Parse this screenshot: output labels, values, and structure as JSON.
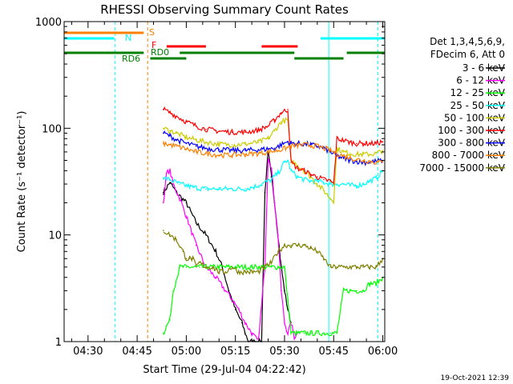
{
  "chart_data": {
    "type": "line",
    "title": "RHESSI Observing Summary Count Rates",
    "xlabel": "Start Time (29-Jul-04 04:22:42)",
    "ylabel": "Count Rate (s⁻¹ detector⁻¹)",
    "yscale": "log",
    "ylim": [
      1,
      1000
    ],
    "xlim_minutes_since_0400": [
      22.7,
      120.6
    ],
    "x_ticks": [
      "04:30",
      "04:45",
      "05:00",
      "05:15",
      "05:30",
      "05:45",
      "06:00"
    ],
    "y_ticks": [
      "1",
      "10",
      "100",
      "1000"
    ],
    "legend_header": [
      "Det 1,3,4,5,6,9,",
      "FDecim 6, Att 0"
    ],
    "series": [
      {
        "name": "3 - 6 keV",
        "color": "#000000",
        "points": [
          [
            53,
            25
          ],
          [
            55,
            31
          ],
          [
            57,
            25
          ],
          [
            60,
            20
          ],
          [
            63,
            13
          ],
          [
            66,
            10
          ],
          [
            69,
            7
          ],
          [
            71,
            5
          ],
          [
            73,
            3
          ],
          [
            75,
            2
          ],
          [
            77,
            1.5
          ],
          [
            78,
            1.2
          ],
          [
            79,
            1
          ],
          [
            81,
            1
          ],
          [
            83,
            1
          ],
          [
            84,
            25
          ],
          [
            85,
            60
          ],
          [
            86,
            35
          ],
          [
            87,
            20
          ],
          [
            88,
            10
          ],
          [
            89,
            5
          ],
          [
            90,
            3
          ],
          [
            91,
            2
          ],
          [
            92,
            1.5
          ]
        ]
      },
      {
        "name": "6 - 12 keV",
        "color": "#ff00ff",
        "points": [
          [
            53,
            20
          ],
          [
            54,
            38
          ],
          [
            55,
            40
          ],
          [
            56,
            30
          ],
          [
            58,
            22
          ],
          [
            60,
            15
          ],
          [
            63,
            8
          ],
          [
            66,
            5
          ],
          [
            69,
            4
          ],
          [
            72,
            3
          ],
          [
            74,
            2.5
          ],
          [
            76,
            2
          ],
          [
            78,
            1.5
          ],
          [
            80,
            1.2
          ],
          [
            82,
            1
          ],
          [
            84,
            5
          ],
          [
            85,
            55
          ],
          [
            86,
            42
          ],
          [
            87,
            20
          ],
          [
            88,
            10
          ],
          [
            89,
            3
          ],
          [
            90,
            1.5
          ],
          [
            91,
            1.2
          ],
          [
            92,
            1.5
          ],
          [
            93,
            1.1
          ],
          [
            94,
            1.2
          ]
        ]
      },
      {
        "name": "12 - 25 keV",
        "color": "#00ff00",
        "points": [
          [
            53,
            1.2
          ],
          [
            54,
            1.4
          ],
          [
            55,
            1.6
          ],
          [
            56,
            3
          ],
          [
            58,
            5
          ],
          [
            60,
            5
          ],
          [
            62,
            5
          ],
          [
            64,
            5
          ],
          [
            66,
            5
          ],
          [
            68,
            5
          ],
          [
            70,
            5
          ],
          [
            72,
            5
          ],
          [
            74,
            5
          ],
          [
            76,
            5
          ],
          [
            78,
            5
          ],
          [
            80,
            5
          ],
          [
            82,
            5
          ],
          [
            84,
            5
          ],
          [
            86,
            5
          ],
          [
            88,
            5
          ],
          [
            90,
            5
          ],
          [
            92,
            1.2
          ],
          [
            94,
            1.2
          ],
          [
            96,
            1.2
          ],
          [
            98,
            1.2
          ],
          [
            100,
            1.2
          ],
          [
            102,
            1.2
          ],
          [
            104,
            1.2
          ],
          [
            106,
            1.2
          ],
          [
            108,
            3
          ],
          [
            110,
            3
          ],
          [
            112,
            3
          ],
          [
            114,
            3
          ],
          [
            116,
            3.5
          ],
          [
            118,
            3.5
          ],
          [
            120,
            4
          ]
        ]
      },
      {
        "name": "25 - 50 keV",
        "color": "#00ffff",
        "points": [
          [
            53,
            34
          ],
          [
            55,
            33
          ],
          [
            58,
            30
          ],
          [
            62,
            28
          ],
          [
            66,
            27
          ],
          [
            70,
            27
          ],
          [
            74,
            27
          ],
          [
            78,
            27
          ],
          [
            82,
            29
          ],
          [
            86,
            33
          ],
          [
            88,
            38
          ],
          [
            90,
            48
          ],
          [
            91,
            50
          ],
          [
            92,
            40
          ],
          [
            94,
            35
          ],
          [
            96,
            33
          ],
          [
            98,
            32
          ],
          [
            100,
            32
          ],
          [
            102,
            31
          ],
          [
            104,
            30
          ],
          [
            106,
            30
          ],
          [
            108,
            30
          ],
          [
            110,
            29
          ],
          [
            112,
            29
          ],
          [
            114,
            30
          ],
          [
            116,
            32
          ],
          [
            118,
            34
          ],
          [
            120,
            40
          ]
        ]
      },
      {
        "name": "50 - 100 keV",
        "color": "#cccc00",
        "points": [
          [
            53,
            100
          ],
          [
            55,
            95
          ],
          [
            57,
            90
          ],
          [
            60,
            82
          ],
          [
            63,
            78
          ],
          [
            66,
            74
          ],
          [
            70,
            71
          ],
          [
            74,
            70
          ],
          [
            78,
            71
          ],
          [
            82,
            74
          ],
          [
            85,
            80
          ],
          [
            87,
            95
          ],
          [
            89,
            115
          ],
          [
            91,
            120
          ],
          [
            92,
            50
          ],
          [
            94,
            45
          ],
          [
            96,
            40
          ],
          [
            98,
            35
          ],
          [
            100,
            30
          ],
          [
            102,
            26
          ],
          [
            104,
            22
          ],
          [
            105,
            21
          ],
          [
            106,
            65
          ],
          [
            108,
            60
          ],
          [
            110,
            58
          ],
          [
            112,
            57
          ],
          [
            114,
            57
          ],
          [
            116,
            57
          ],
          [
            118,
            58
          ],
          [
            120,
            62
          ]
        ]
      },
      {
        "name": "100 - 300 keV",
        "color": "#ff0000",
        "points": [
          [
            53,
            150
          ],
          [
            55,
            140
          ],
          [
            57,
            130
          ],
          [
            60,
            115
          ],
          [
            63,
            105
          ],
          [
            66,
            98
          ],
          [
            70,
            94
          ],
          [
            74,
            92
          ],
          [
            78,
            92
          ],
          [
            82,
            96
          ],
          [
            85,
            105
          ],
          [
            87,
            120
          ],
          [
            89,
            140
          ],
          [
            91,
            150
          ],
          [
            92,
            48
          ],
          [
            94,
            42
          ],
          [
            96,
            40
          ],
          [
            98,
            37
          ],
          [
            100,
            35
          ],
          [
            102,
            33
          ],
          [
            104,
            32
          ],
          [
            105,
            30
          ],
          [
            106,
            80
          ],
          [
            108,
            77
          ],
          [
            110,
            74
          ],
          [
            112,
            72
          ],
          [
            114,
            72
          ],
          [
            116,
            72
          ],
          [
            118,
            72
          ],
          [
            120,
            75
          ]
        ]
      },
      {
        "name": "300 - 800 keV",
        "color": "#0000ff",
        "points": [
          [
            53,
            90
          ],
          [
            55,
            85
          ],
          [
            57,
            78
          ],
          [
            60,
            72
          ],
          [
            63,
            68
          ],
          [
            66,
            65
          ],
          [
            70,
            63
          ],
          [
            74,
            62
          ],
          [
            78,
            62
          ],
          [
            82,
            63
          ],
          [
            85,
            64
          ],
          [
            87,
            65
          ],
          [
            89,
            70
          ],
          [
            91,
            75
          ],
          [
            92,
            72
          ],
          [
            94,
            72
          ],
          [
            96,
            71
          ],
          [
            98,
            70
          ],
          [
            100,
            68
          ],
          [
            102,
            65
          ],
          [
            104,
            60
          ],
          [
            106,
            55
          ],
          [
            108,
            52
          ],
          [
            110,
            50
          ],
          [
            112,
            49
          ],
          [
            114,
            48
          ],
          [
            116,
            48
          ],
          [
            118,
            49
          ],
          [
            120,
            50
          ]
        ]
      },
      {
        "name": "800 - 7000 keV",
        "color": "#ff8000",
        "points": [
          [
            53,
            72
          ],
          [
            55,
            70
          ],
          [
            57,
            68
          ],
          [
            60,
            64
          ],
          [
            63,
            60
          ],
          [
            66,
            58
          ],
          [
            70,
            56
          ],
          [
            74,
            56
          ],
          [
            78,
            57
          ],
          [
            82,
            58
          ],
          [
            85,
            60
          ],
          [
            88,
            62
          ],
          [
            91,
            66
          ],
          [
            92,
            68
          ],
          [
            94,
            69
          ],
          [
            96,
            70
          ],
          [
            98,
            69
          ],
          [
            100,
            68
          ],
          [
            102,
            65
          ],
          [
            104,
            62
          ],
          [
            106,
            58
          ],
          [
            108,
            55
          ],
          [
            110,
            53
          ],
          [
            112,
            51
          ],
          [
            114,
            50
          ],
          [
            116,
            49
          ],
          [
            118,
            48
          ],
          [
            120,
            48
          ]
        ]
      },
      {
        "name": "7000 - 15000 keV",
        "color": "#808000",
        "points": [
          [
            53,
            11
          ],
          [
            55,
            10
          ],
          [
            57,
            9
          ],
          [
            59,
            7
          ],
          [
            60,
            6
          ],
          [
            61,
            6
          ],
          [
            62,
            6
          ],
          [
            63,
            5
          ],
          [
            64,
            5.5
          ],
          [
            66,
            5
          ],
          [
            68,
            5
          ],
          [
            70,
            4.5
          ],
          [
            72,
            4.5
          ],
          [
            74,
            5
          ],
          [
            76,
            4.5
          ],
          [
            78,
            4.5
          ],
          [
            80,
            4.5
          ],
          [
            82,
            4.5
          ],
          [
            84,
            5
          ],
          [
            86,
            5.5
          ],
          [
            88,
            7
          ],
          [
            90,
            8
          ],
          [
            92,
            8
          ],
          [
            94,
            8
          ],
          [
            96,
            8
          ],
          [
            98,
            7.5
          ],
          [
            100,
            7
          ],
          [
            102,
            6
          ],
          [
            104,
            5
          ],
          [
            106,
            5
          ],
          [
            108,
            5
          ],
          [
            110,
            5
          ],
          [
            112,
            5
          ],
          [
            114,
            5
          ],
          [
            116,
            5
          ],
          [
            118,
            5
          ],
          [
            120,
            6
          ]
        ]
      }
    ],
    "flag_bars": [
      {
        "label": "S",
        "color": "#ff8000",
        "segments": [
          [
            22.7,
            47
          ]
        ]
      },
      {
        "label": "N",
        "color": "#00ffff",
        "segments": [
          [
            22.7,
            38
          ],
          [
            101,
            120.6
          ]
        ]
      },
      {
        "label": "F",
        "color": "#ff0000",
        "segments": [
          [
            54,
            66
          ],
          [
            83,
            94
          ]
        ]
      },
      {
        "label": "RD0",
        "color": "#008000",
        "segments": [
          [
            22.7,
            47
          ],
          [
            58,
            93
          ],
          [
            109,
            120.6
          ]
        ]
      },
      {
        "label": "RD6",
        "color": "#008000",
        "segments": [
          [
            49,
            60
          ],
          [
            93,
            108
          ]
        ]
      }
    ],
    "vertical_markers": [
      {
        "x": 38.3,
        "color": "#00ffff",
        "style": "dashed"
      },
      {
        "x": 48.2,
        "color": "#ff8000",
        "style": "dashed"
      },
      {
        "x": 103.5,
        "color": "#00ffff",
        "style": "solid"
      },
      {
        "x": 118.5,
        "color": "#00ffff",
        "style": "dashed"
      }
    ]
  },
  "footer": {
    "date_stamp": "19-Oct-2021 12:39"
  }
}
